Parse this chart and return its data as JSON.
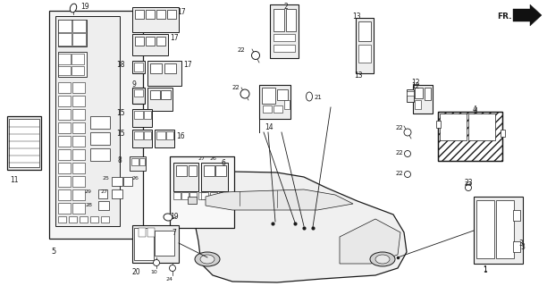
{
  "bg_color": "#ffffff",
  "line_color": "#1a1a1a",
  "fig_width": 6.12,
  "fig_height": 3.2,
  "dpi": 100,
  "fr_label": "FR."
}
